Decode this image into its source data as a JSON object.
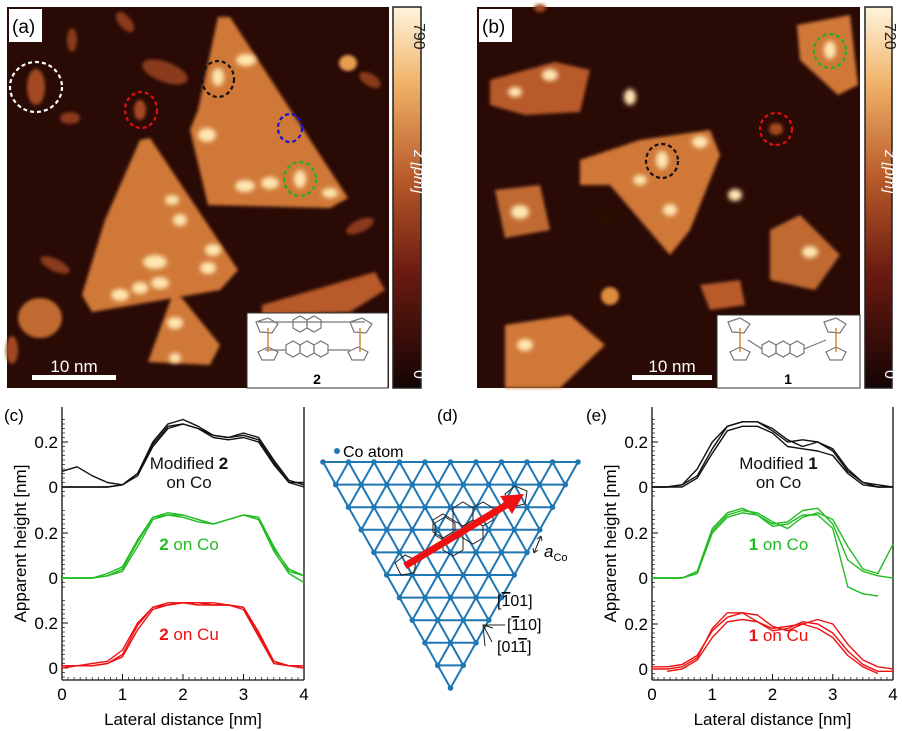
{
  "panels": {
    "a": {
      "label": "(a)",
      "scalebar": "10 nm",
      "colorbar_max": "790",
      "colorbar_min": "0",
      "colorbar_label": "z [pm]",
      "inset_label": "2",
      "circle_colors": [
        "#ffffff",
        "#e01010",
        "#111111",
        "#1010d0",
        "#20b020"
      ]
    },
    "b": {
      "label": "(b)",
      "scalebar": "10 nm",
      "colorbar_max": "720",
      "colorbar_min": "0",
      "colorbar_label": "z [pm]",
      "inset_label": "1",
      "circle_colors": [
        "#20b020",
        "#e01010",
        "#111111"
      ]
    },
    "d": {
      "label": "(d)",
      "legend": "Co atom",
      "lattice_label": "a",
      "lattice_sub": "Co",
      "directions": [
        "[̅0101]",
        "[̅1̅1 10]",
        "[01̅1]"
      ],
      "dir_labels": [
        {
          "bar": "1",
          "rest": "01",
          "pre": ""
        },
        {
          "bar": "1",
          "rest": "10",
          "pre": ""
        },
        {
          "pre": "01",
          "bar": "1",
          "rest": ""
        }
      ],
      "lattice_color": "#1f77b4",
      "arrow_color": "#ee1111"
    }
  },
  "chart_data": [
    {
      "panel": "(c)",
      "type": "line",
      "xlabel": "Lateral distance [nm]",
      "ylabel": "Apparent height [nm]",
      "xlim": [
        0,
        4
      ],
      "xticks": [
        "0",
        "1",
        "2",
        "3",
        "4"
      ],
      "yticks": [
        "0",
        "0.2"
      ],
      "x": [
        0,
        0.25,
        0.5,
        0.75,
        1,
        1.25,
        1.5,
        1.75,
        2,
        2.25,
        2.5,
        2.75,
        3,
        3.25,
        3.5,
        3.75,
        4
      ],
      "groups": [
        {
          "label_pre": "Modified ",
          "label_bold": "2",
          "label_post": "on Co",
          "color": "#111111",
          "traces": [
            [
              0.07,
              0.09,
              0.05,
              0.02,
              0.01,
              0.06,
              0.2,
              0.28,
              0.3,
              0.27,
              0.23,
              0.22,
              0.24,
              0.22,
              0.12,
              0.03,
              0.01
            ],
            [
              0,
              0,
              0,
              0,
              0.01,
              0.06,
              0.19,
              0.27,
              0.28,
              0.26,
              0.23,
              0.22,
              0.23,
              0.21,
              0.11,
              0.02,
              0.02
            ],
            [
              0,
              0,
              0,
              0,
              0.01,
              0.05,
              0.18,
              0.26,
              0.28,
              0.26,
              0.22,
              0.21,
              0.22,
              0.2,
              0.1,
              0.02,
              0
            ]
          ]
        },
        {
          "label_pre": "",
          "label_bold": "2",
          "label_post": " on Co",
          "color": "#22bb22",
          "traces": [
            [
              0,
              0,
              0,
              0.01,
              0.03,
              0.14,
              0.26,
              0.28,
              0.28,
              0.26,
              0.24,
              0.26,
              0.28,
              0.27,
              0.14,
              0.03,
              0.01
            ],
            [
              0,
              0,
              0,
              0.01,
              0.04,
              0.16,
              0.27,
              0.28,
              0.27,
              0.25,
              0.24,
              0.26,
              0.28,
              0.26,
              0.12,
              0.02,
              -0.02
            ],
            [
              0,
              0,
              0,
              0.02,
              0.05,
              0.17,
              0.27,
              0.29,
              0.28,
              0.26,
              0.24,
              0.26,
              0.28,
              0.26,
              0.13,
              0.04,
              0.01
            ]
          ]
        },
        {
          "label_pre": "",
          "label_bold": "2",
          "label_post": " on Cu",
          "color": "#ee1111",
          "traces": [
            [
              0.01,
              0.01,
              0.01,
              0.02,
              0.05,
              0.17,
              0.26,
              0.28,
              0.29,
              0.29,
              0.29,
              0.28,
              0.27,
              0.16,
              0.03,
              0.01,
              0.01
            ],
            [
              0.01,
              0.01,
              0.01,
              0.02,
              0.06,
              0.19,
              0.27,
              0.29,
              0.29,
              0.29,
              0.28,
              0.28,
              0.26,
              0.14,
              0.02,
              0.01,
              0
            ],
            [
              0,
              0.01,
              0.02,
              0.03,
              0.08,
              0.2,
              0.27,
              0.28,
              0.29,
              0.28,
              0.28,
              0.28,
              0.27,
              0.15,
              0.03,
              0.01,
              0.01
            ]
          ]
        }
      ]
    },
    {
      "panel": "(e)",
      "type": "line",
      "xlabel": "Lateral distance [nm]",
      "ylabel": "Apparent height [nm]",
      "xlim": [
        0,
        4
      ],
      "xticks": [
        "0",
        "1",
        "2",
        "3",
        "4"
      ],
      "yticks": [
        "0",
        "0.2"
      ],
      "x": [
        0,
        0.25,
        0.5,
        0.75,
        1,
        1.25,
        1.5,
        1.75,
        2,
        2.25,
        2.5,
        2.75,
        3,
        3.25,
        3.5,
        3.75,
        4
      ],
      "groups": [
        {
          "label_pre": "Modified ",
          "label_bold": "1",
          "label_post": "on Co",
          "color": "#111111",
          "traces": [
            [
              0,
              0,
              0.01,
              0.05,
              0.17,
              0.27,
              0.29,
              0.29,
              0.26,
              0.21,
              0.18,
              0.2,
              0.17,
              0.08,
              0.02,
              0,
              0
            ],
            [
              0,
              0,
              0.01,
              0.08,
              0.2,
              0.27,
              0.29,
              0.29,
              0.25,
              0.2,
              0.21,
              0.2,
              0.16,
              0.07,
              0.02,
              0.01,
              0
            ],
            [
              0,
              0,
              0,
              0.04,
              0.15,
              0.25,
              0.27,
              0.27,
              0.24,
              0.18,
              0.17,
              0.16,
              0.14,
              0.06,
              0.01,
              0,
              0
            ]
          ]
        },
        {
          "label_pre": "",
          "label_bold": "1",
          "label_post": " on Co",
          "color": "#22bb22",
          "traces": [
            [
              0,
              0,
              0,
              0.02,
              0.21,
              0.28,
              0.3,
              0.29,
              0.25,
              0.22,
              0.27,
              0.29,
              0.26,
              0.14,
              0.04,
              0.02,
              0.15
            ],
            [
              0,
              0,
              0,
              0.03,
              0.22,
              0.29,
              0.31,
              0.28,
              0.24,
              0.25,
              0.3,
              0.31,
              0.24,
              0.08,
              0.03,
              0.01,
              0
            ],
            [
              0,
              0,
              0,
              0.02,
              0.2,
              0.27,
              0.29,
              0.28,
              0.23,
              0.24,
              0.28,
              0.28,
              0.22,
              -0.04,
              -0.07,
              -0.08,
              null
            ]
          ]
        },
        {
          "label_pre": "",
          "label_bold": "1",
          "label_post": " on Cu",
          "color": "#ee1111",
          "traces": [
            [
              0.01,
              0.01,
              0.02,
              0.06,
              0.17,
              0.23,
              0.25,
              0.24,
              0.19,
              0.17,
              0.2,
              0.22,
              0.2,
              0.11,
              0.04,
              0.01,
              0
            ],
            [
              0,
              0,
              0.01,
              0.05,
              0.18,
              0.25,
              0.25,
              0.21,
              0.17,
              0.18,
              0.21,
              0.2,
              0.16,
              0.08,
              0.02,
              -0.01,
              -0.01
            ],
            [
              null,
              -0.01,
              0,
              0.04,
              0.14,
              0.21,
              0.22,
              0.21,
              0.18,
              0.19,
              0.2,
              0.18,
              0.14,
              0.06,
              0.01,
              -0.02,
              null
            ]
          ]
        }
      ]
    }
  ]
}
